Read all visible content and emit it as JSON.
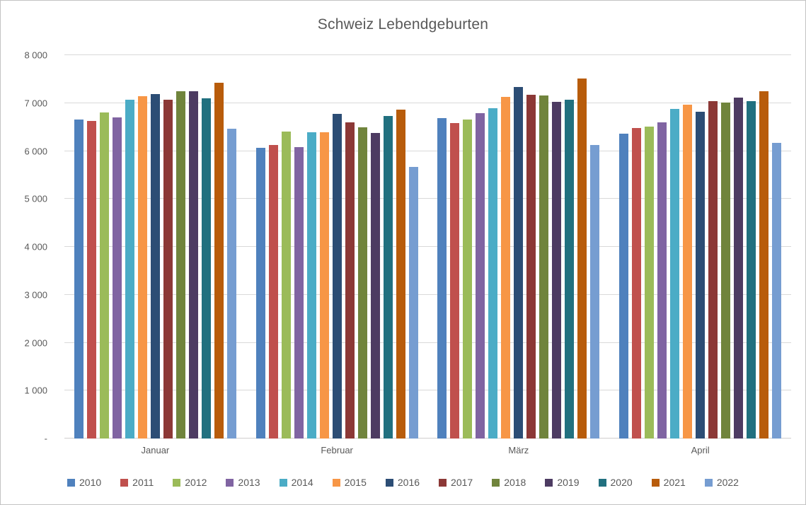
{
  "chart_data": {
    "type": "bar",
    "title": "Schweiz Lebendgeburten",
    "categories": [
      "Januar",
      "Februar",
      "März",
      "April"
    ],
    "series": [
      {
        "name": "2010",
        "color": "#4F81BD",
        "values": [
          6660,
          6070,
          6685,
          6355
        ]
      },
      {
        "name": "2011",
        "color": "#C0504D",
        "values": [
          6630,
          6130,
          6590,
          6480
        ]
      },
      {
        "name": "2012",
        "color": "#9BBB59",
        "values": [
          6800,
          6410,
          6655,
          6515
        ]
      },
      {
        "name": "2013",
        "color": "#8064A2",
        "values": [
          6700,
          6085,
          6790,
          6595
        ]
      },
      {
        "name": "2014",
        "color": "#4BACC6",
        "values": [
          7065,
          6395,
          6890,
          6885
        ]
      },
      {
        "name": "2015",
        "color": "#F79646",
        "values": [
          7150,
          6395,
          7130,
          6970
        ]
      },
      {
        "name": "2016",
        "color": "#2C4D75",
        "values": [
          7185,
          6775,
          7340,
          6825
        ]
      },
      {
        "name": "2017",
        "color": "#8C3836",
        "values": [
          7065,
          6605,
          7170,
          7045
        ]
      },
      {
        "name": "2018",
        "color": "#70843C",
        "values": [
          7245,
          6495,
          7155,
          7010
        ]
      },
      {
        "name": "2019",
        "color": "#4D3B62",
        "values": [
          7245,
          6375,
          7020,
          7110
        ]
      },
      {
        "name": "2020",
        "color": "#21707F",
        "values": [
          7105,
          6725,
          7065,
          7045
        ]
      },
      {
        "name": "2021",
        "color": "#B85C0B",
        "values": [
          7430,
          6870,
          7515,
          7245
        ]
      },
      {
        "name": "2022",
        "color": "#769DD1",
        "values": [
          6470,
          5670,
          6125,
          6175
        ]
      }
    ],
    "ylim": [
      0,
      8000
    ],
    "yticks": [
      {
        "value": 8000,
        "label": "8 000"
      },
      {
        "value": 7000,
        "label": "7 000"
      },
      {
        "value": 6000,
        "label": "6 000"
      },
      {
        "value": 5000,
        "label": "5 000"
      },
      {
        "value": 4000,
        "label": "4 000"
      },
      {
        "value": 3000,
        "label": "3 000"
      },
      {
        "value": 2000,
        "label": "2 000"
      },
      {
        "value": 1000,
        "label": "1 000"
      },
      {
        "value": 0,
        "label": "-"
      }
    ],
    "grid": true,
    "legend_position": "bottom"
  }
}
